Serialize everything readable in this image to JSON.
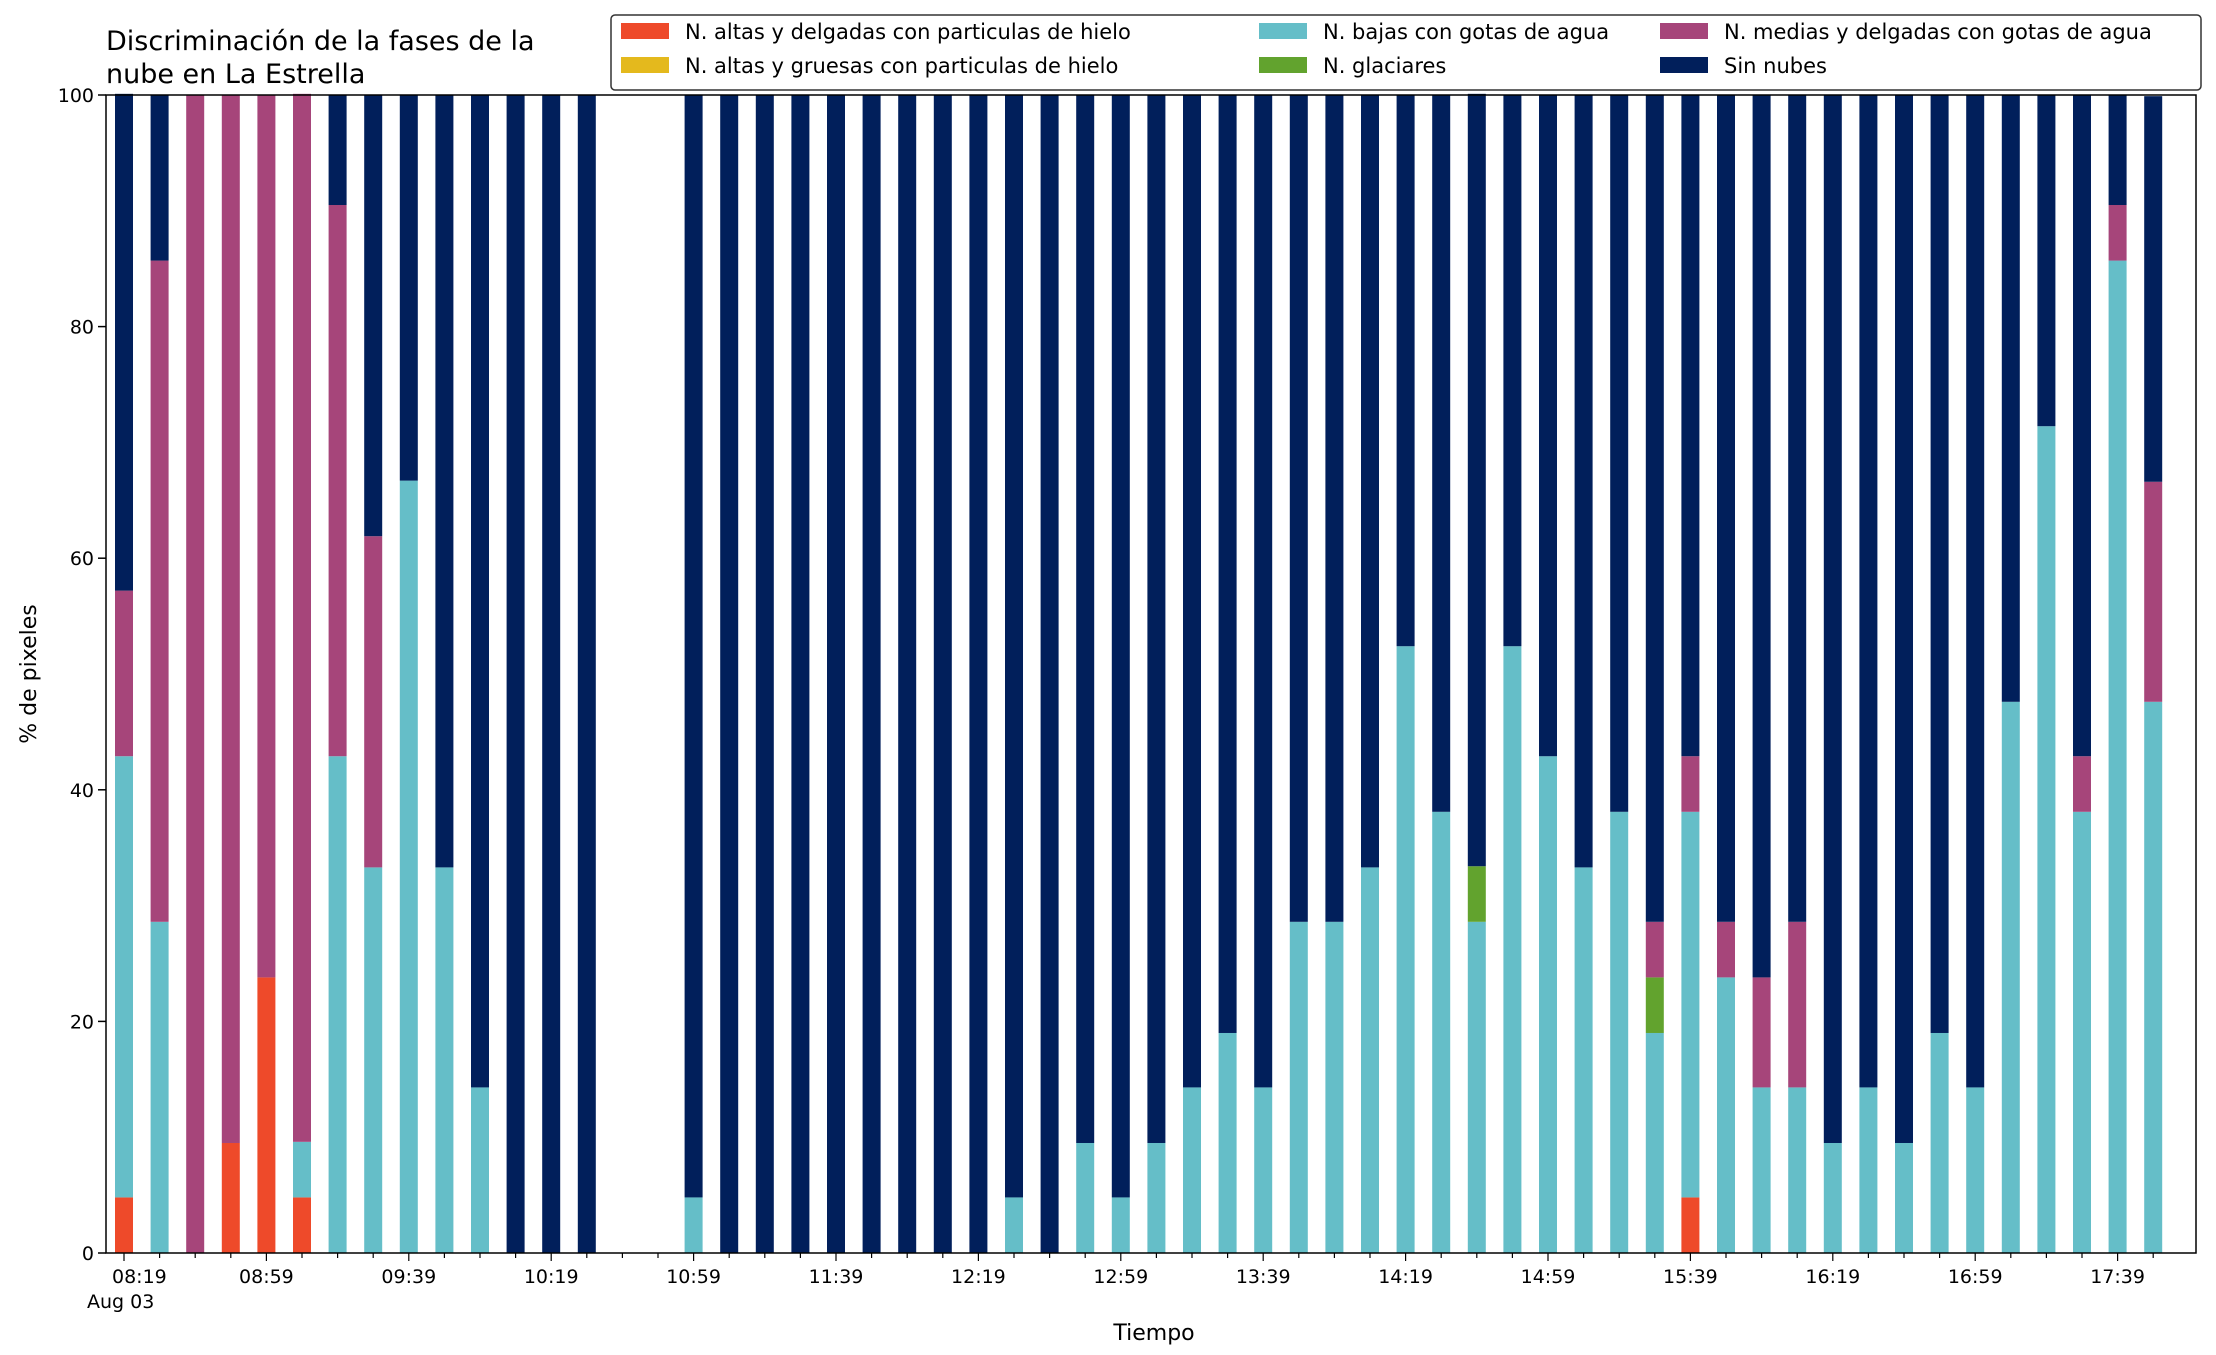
{
  "chart_data": {
    "type": "bar",
    "stacked": true,
    "title": "Discriminación de la fases de la\nnube en La Estrella",
    "xlabel": "Tiempo",
    "ylabel": "% de pixeles",
    "ylim": [
      0,
      100
    ],
    "yticks": [
      0,
      20,
      40,
      60,
      80,
      100
    ],
    "xtick_labels": [
      "08:19",
      "08:59",
      "09:39",
      "10:19",
      "10:59",
      "11:39",
      "12:19",
      "12:59",
      "13:39",
      "14:19",
      "14:59",
      "15:39",
      "16:19",
      "16:59",
      "17:39"
    ],
    "xtick_sublabel": "Aug 03",
    "legend_position": "top-right",
    "grid": false,
    "categories": [
      "08:19",
      "08:29",
      "08:39",
      "08:49",
      "08:59",
      "09:09",
      "09:19",
      "09:29",
      "09:39",
      "09:49",
      "09:59",
      "10:09",
      "10:19",
      "10:29",
      "10:39",
      "10:49",
      "10:59",
      "11:09",
      "11:19",
      "11:29",
      "11:39",
      "11:49",
      "11:59",
      "12:09",
      "12:19",
      "12:29",
      "12:39",
      "12:49",
      "12:59",
      "13:09",
      "13:19",
      "13:29",
      "13:39",
      "13:49",
      "13:59",
      "14:09",
      "14:19",
      "14:29",
      "14:39",
      "14:49",
      "14:59",
      "15:09",
      "15:19",
      "15:29",
      "15:39",
      "15:49",
      "15:59",
      "16:09",
      "16:19",
      "16:29",
      "16:39",
      "16:49",
      "16:59",
      "17:09",
      "17:19",
      "17:29",
      "17:39",
      "17:49"
    ],
    "series": [
      {
        "name": "N. altas y delgadas con particulas de hielo",
        "color": "#ee4a2a",
        "values": [
          4.8,
          0,
          0,
          9.5,
          23.8,
          4.8,
          0,
          0,
          0,
          0,
          0,
          0,
          0,
          0,
          0,
          0,
          0,
          0,
          0,
          0,
          0,
          0,
          0,
          0,
          0,
          0,
          0,
          0,
          0,
          0,
          0,
          0,
          0,
          0,
          0,
          0,
          0,
          0,
          0,
          0,
          0,
          0,
          0,
          0,
          4.8,
          0,
          0,
          0,
          0,
          0,
          0,
          0,
          0,
          0,
          0,
          0,
          0,
          0
        ]
      },
      {
        "name": "N. altas y gruesas con particulas de hielo",
        "color": "#e4b91d",
        "values": [
          0,
          0,
          0,
          0,
          0,
          0,
          0,
          0,
          0,
          0,
          0,
          0,
          0,
          0,
          0,
          0,
          0,
          0,
          0,
          0,
          0,
          0,
          0,
          0,
          0,
          0,
          0,
          0,
          0,
          0,
          0,
          0,
          0,
          0,
          0,
          0,
          0,
          0,
          0,
          0,
          0,
          0,
          0,
          0,
          0,
          0,
          0,
          0,
          0,
          0,
          0,
          0,
          0,
          0,
          0,
          0,
          0,
          0
        ]
      },
      {
        "name": "N. bajas con gotas de agua",
        "color": "#65bec8",
        "values": [
          38.1,
          28.6,
          0,
          0,
          0,
          4.8,
          42.9,
          33.3,
          66.7,
          33.3,
          14.3,
          0,
          0,
          0,
          0,
          0,
          4.8,
          0,
          0,
          0,
          0,
          0,
          0,
          0,
          0,
          4.8,
          0,
          9.5,
          4.8,
          9.5,
          14.3,
          19.0,
          14.3,
          28.6,
          28.6,
          33.3,
          52.4,
          38.1,
          28.6,
          52.4,
          42.9,
          33.3,
          38.1,
          19.0,
          33.3,
          23.8,
          14.3,
          14.3,
          9.5,
          14.3,
          9.5,
          19.0,
          14.3,
          47.6,
          71.4,
          38.1,
          85.7,
          47.6
        ]
      },
      {
        "name": "N. glaciares",
        "color": "#62a32e",
        "values": [
          0,
          0,
          0,
          0,
          0,
          0,
          0,
          0,
          0,
          0,
          0,
          0,
          0,
          0,
          0,
          0,
          0,
          0,
          0,
          0,
          0,
          0,
          0,
          0,
          0,
          0,
          0,
          0,
          0,
          0,
          0,
          0,
          0,
          0,
          0,
          0,
          0,
          0,
          4.8,
          0,
          0,
          0,
          0,
          4.8,
          0,
          0,
          0,
          0,
          0,
          0,
          0,
          0,
          0,
          0,
          0,
          0,
          0,
          0
        ]
      },
      {
        "name": "N. medias y delgadas con gotas de agua",
        "color": "#a6457a",
        "values": [
          14.3,
          57.1,
          100,
          90.5,
          76.2,
          90.5,
          47.6,
          28.6,
          0,
          0,
          0,
          0,
          0,
          0,
          0,
          0,
          0,
          0,
          0,
          0,
          0,
          0,
          0,
          0,
          0,
          0,
          0,
          0,
          0,
          0,
          0,
          0,
          0,
          0,
          0,
          0,
          0,
          0,
          0,
          0,
          0,
          0,
          0,
          4.8,
          4.8,
          4.8,
          9.5,
          14.3,
          0,
          0,
          0,
          0,
          0,
          0,
          0,
          4.8,
          4.8,
          19.0
        ]
      },
      {
        "name": "Sin nubes",
        "color": "#011f5b",
        "values": [
          42.9,
          14.3,
          0,
          0,
          0,
          0,
          9.5,
          38.1,
          33.3,
          66.7,
          85.7,
          100,
          100,
          100,
          0,
          0,
          95.2,
          100,
          100,
          100,
          100,
          100,
          100,
          100,
          100,
          95.2,
          100,
          90.5,
          95.2,
          90.5,
          85.7,
          81.0,
          85.7,
          71.4,
          71.4,
          66.7,
          47.6,
          61.9,
          66.7,
          47.6,
          57.1,
          66.7,
          61.9,
          71.4,
          57.1,
          71.4,
          76.2,
          71.4,
          90.5,
          85.7,
          90.5,
          81.0,
          85.7,
          52.4,
          28.6,
          57.1,
          9.5,
          33.3
        ]
      }
    ]
  }
}
